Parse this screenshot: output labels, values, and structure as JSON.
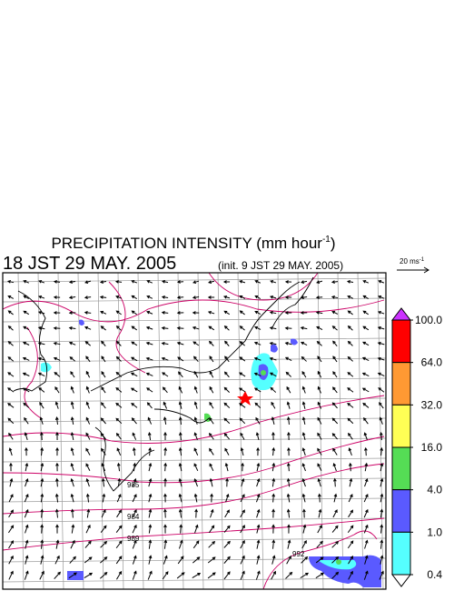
{
  "header": {
    "title": {
      "text": "PRECIPITATION INTENSITY (mm hour",
      "sup": "-1",
      "close": ")"
    },
    "valid_time": "18 JST 29 MAY. 2005",
    "init_time": "(init. 9 JST 29 MAY. 2005)"
  },
  "wind_scale": {
    "text": "20 ms",
    "sup": "-1"
  },
  "colorbar": {
    "levels": [
      {
        "value": 100,
        "label": "100.0"
      },
      {
        "value": 64,
        "label": "64.0"
      },
      {
        "value": 32,
        "label": "32.0"
      },
      {
        "value": 16,
        "label": "16.0"
      },
      {
        "value": 4,
        "label": "4.0"
      },
      {
        "value": 1,
        "label": "1.0"
      },
      {
        "value": 0.4,
        "label": "0.4"
      }
    ],
    "colors": [
      "#ff0000",
      "#ff9933",
      "#ffff55",
      "#55dd55",
      "#5a5aff",
      "#55ffff"
    ],
    "over_color": "#cc33ff",
    "under_color": "#ffffff"
  },
  "map": {
    "isobar_labels": [
      "985",
      "984",
      "989",
      "992"
    ]
  }
}
